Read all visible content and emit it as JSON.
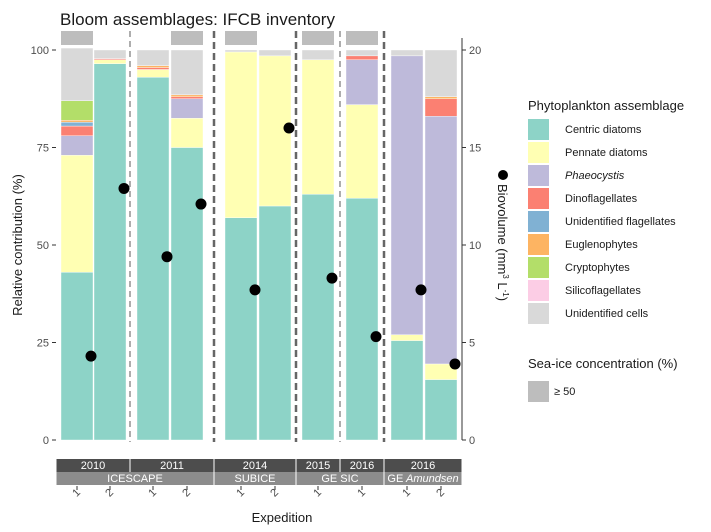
{
  "chart_data": {
    "type": "bar",
    "title": "Bloom assemblages: IFCB inventory",
    "xlabel": "Expedition",
    "ylabel": "Relative contribution (%)",
    "y2label_prefix": "Biovolume (mm",
    "y2label_sup1": "3",
    "y2label_mid": " L",
    "y2label_sup2": "-1",
    "y2label_suffix": ")",
    "ylim": [
      0,
      100
    ],
    "yticks": [
      "0",
      "25",
      "50",
      "75",
      "100"
    ],
    "y2lim": [
      0,
      20
    ],
    "y2ticks": [
      "0",
      "5",
      "10",
      "15",
      "20"
    ],
    "grid": false,
    "stacked": true,
    "legend": {
      "title": "Phytoplankton assemblage",
      "position": "right",
      "items": [
        {
          "label": "Centric diatoms",
          "color": "#8dd3c7",
          "italic": false
        },
        {
          "label": "Pennate diatoms",
          "color": "#ffffb3",
          "italic": false
        },
        {
          "label": "Phaeocystis",
          "color": "#bebada",
          "italic": true
        },
        {
          "label": "Dinoflagellates",
          "color": "#fb8072",
          "italic": false
        },
        {
          "label": "Unidentified flagellates",
          "color": "#80b1d3",
          "italic": false
        },
        {
          "label": "Euglenophytes",
          "color": "#fdb462",
          "italic": false
        },
        {
          "label": "Cryptophytes",
          "color": "#b3de69",
          "italic": false
        },
        {
          "label": "Silicoflagellates",
          "color": "#fccde5",
          "italic": false
        },
        {
          "label": "Unidentified cells",
          "color": "#d9d9d9",
          "italic": false
        }
      ]
    },
    "seaice_legend": {
      "title": "Sea-ice concentration (%)",
      "label": "≥ 50",
      "color": "#bdbdbd"
    },
    "groups": [
      {
        "year": "2010",
        "expedition": "ICESCAPE",
        "bars": [
          {
            "label": "1",
            "seaice": true,
            "biovolume": 4.3,
            "values": [
              43,
              30,
              5,
              2.5,
              1,
              0.5,
              5,
              0,
              13.5
            ]
          },
          {
            "label": "2",
            "seaice": false,
            "biovolume": 12.9,
            "values": [
              96.5,
              1,
              0,
              0.3,
              0,
              0,
              0,
              0,
              2.2
            ]
          }
        ]
      },
      {
        "year": "2011",
        "expedition": "ICESCAPE",
        "bars": [
          {
            "label": "1",
            "seaice": false,
            "biovolume": 9.4,
            "values": [
              93,
              2,
              0,
              0.5,
              0,
              0.5,
              0,
              0,
              4
            ]
          },
          {
            "label": "2",
            "seaice": true,
            "biovolume": 12.1,
            "values": [
              75,
              7.5,
              5,
              0.5,
              0,
              0.5,
              0,
              0,
              11.5
            ]
          }
        ]
      },
      {
        "year": "2014",
        "expedition": "SUBICE",
        "bars": [
          {
            "label": "1",
            "seaice": true,
            "biovolume": 7.7,
            "values": [
              57,
              42.5,
              0,
              0,
              0,
              0,
              0,
              0,
              0.5
            ]
          },
          {
            "label": "2",
            "seaice": false,
            "biovolume": 16.0,
            "values": [
              60,
              38.5,
              0,
              0,
              0,
              0,
              0,
              0,
              1.5
            ]
          }
        ]
      },
      {
        "year": "2015",
        "expedition": "GE SIC",
        "bars": [
          {
            "label": "1",
            "seaice": true,
            "biovolume": 8.3,
            "values": [
              63,
              34.5,
              0,
              0,
              0,
              0,
              0,
              0,
              2.5
            ]
          }
        ]
      },
      {
        "year": "2016",
        "expedition": "GE SIC",
        "bars": [
          {
            "label": "1",
            "seaice": true,
            "biovolume": 5.3,
            "values": [
              62,
              24,
              11.5,
              1,
              0,
              0,
              0,
              0,
              1.5
            ]
          }
        ]
      },
      {
        "year": "2016",
        "expedition": "GE Amundsen",
        "bars": [
          {
            "label": "1",
            "seaice": false,
            "biovolume": 7.7,
            "values": [
              25.5,
              1.5,
              71.5,
              0,
              0,
              0,
              0,
              0,
              1.5
            ]
          },
          {
            "label": "2",
            "seaice": false,
            "biovolume": 3.9,
            "values": [
              15.5,
              4,
              63.5,
              4.5,
              0,
              0.5,
              0,
              0,
              12
            ]
          }
        ]
      }
    ],
    "expedition_spans": [
      {
        "name": "ICESCAPE",
        "italic_part": ""
      },
      {
        "name": "SUBICE",
        "italic_part": ""
      },
      {
        "name": "GE SIC",
        "italic_part": ""
      },
      {
        "name": "GE",
        "italic_part": "Amundsen"
      }
    ]
  }
}
